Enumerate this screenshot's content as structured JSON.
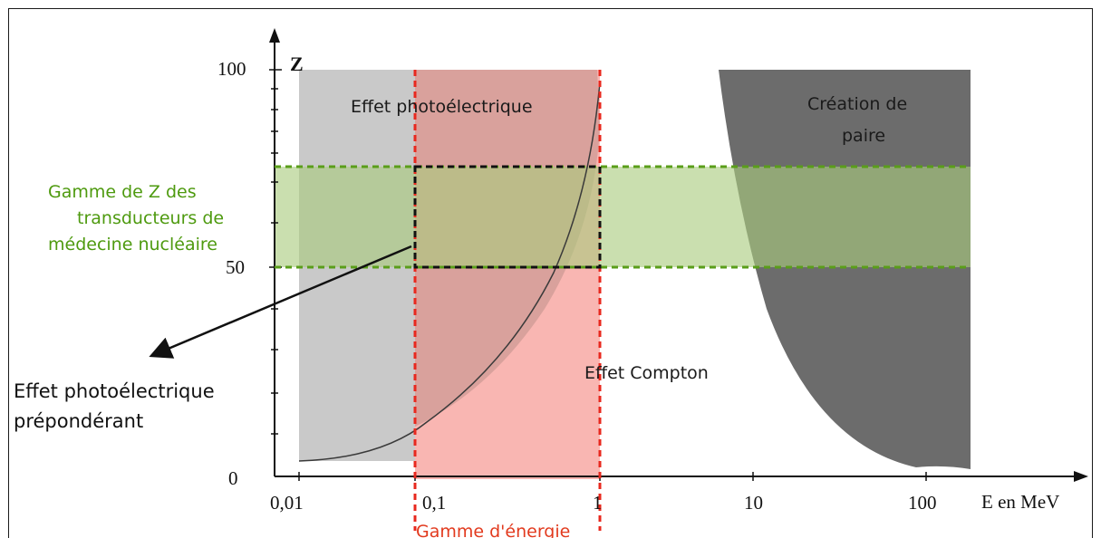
{
  "axes": {
    "y_label": "Z",
    "x_label": "E en MeV",
    "y_ticks": [
      "100",
      "50",
      "0"
    ],
    "x_ticks": [
      "0,01",
      "0,1",
      "1",
      "10",
      "100"
    ]
  },
  "regions": {
    "photoelectric": "Effet photoélectrique",
    "compton": "Effet Compton",
    "pair_line1": "Création de",
    "pair_line2": "paire"
  },
  "z_range_label": [
    "Gamme de Z des",
    "transducteurs de",
    "médecine nucléaire"
  ],
  "energy_range_label": "Gamme d'énergie",
  "dominant_label": [
    "Effet photoélectrique",
    "prépondérant"
  ],
  "colors": {
    "photoelectric_gray": "#c9c9c9",
    "energy_band_red": "#f9b6b2",
    "z_band_green": "#a9cc7e",
    "pair_dark": "#6c6c6c",
    "green_dashed": "#5a9e1a",
    "red_dashed": "#e8281e",
    "green_text": "#4e9a0f",
    "red_text": "#e23a1e"
  }
}
